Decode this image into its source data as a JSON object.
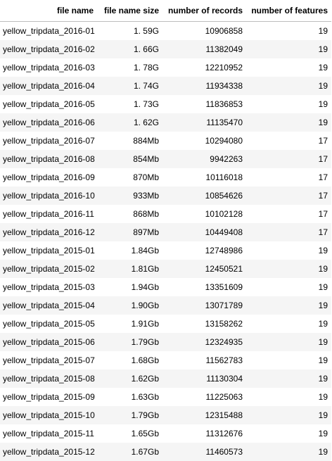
{
  "table": {
    "columns": [
      "file name",
      "file name size",
      "number of records",
      "number of features"
    ],
    "rows": [
      [
        "yellow_tripdata_2016-01",
        "1. 59G",
        "10906858",
        "19"
      ],
      [
        "yellow_tripdata_2016-02",
        "1. 66G",
        "11382049",
        "19"
      ],
      [
        "yellow_tripdata_2016-03",
        "1. 78G",
        "12210952",
        "19"
      ],
      [
        "yellow_tripdata_2016-04",
        "1. 74G",
        "11934338",
        "19"
      ],
      [
        "yellow_tripdata_2016-05",
        "1. 73G",
        "11836853",
        "19"
      ],
      [
        "yellow_tripdata_2016-06",
        "1. 62G",
        "11135470",
        "19"
      ],
      [
        "yellow_tripdata_2016-07",
        "884Mb",
        "10294080",
        "17"
      ],
      [
        "yellow_tripdata_2016-08",
        "854Mb",
        "9942263",
        "17"
      ],
      [
        "yellow_tripdata_2016-09",
        "870Mb",
        "10116018",
        "17"
      ],
      [
        "yellow_tripdata_2016-10",
        "933Mb",
        "10854626",
        "17"
      ],
      [
        "yellow_tripdata_2016-11",
        "868Mb",
        "10102128",
        "17"
      ],
      [
        "yellow_tripdata_2016-12",
        "897Mb",
        "10449408",
        "17"
      ],
      [
        "yellow_tripdata_2015-01",
        "1.84Gb",
        "12748986",
        "19"
      ],
      [
        "yellow_tripdata_2015-02",
        "1.81Gb",
        "12450521",
        "19"
      ],
      [
        "yellow_tripdata_2015-03",
        "1.94Gb",
        "13351609",
        "19"
      ],
      [
        "yellow_tripdata_2015-04",
        "1.90Gb",
        "13071789",
        "19"
      ],
      [
        "yellow_tripdata_2015-05",
        "1.91Gb",
        "13158262",
        "19"
      ],
      [
        "yellow_tripdata_2015-06",
        "1.79Gb",
        "12324935",
        "19"
      ],
      [
        "yellow_tripdata_2015-07",
        "1.68Gb",
        "11562783",
        "19"
      ],
      [
        "yellow_tripdata_2015-08",
        "1.62Gb",
        "11130304",
        "19"
      ],
      [
        "yellow_tripdata_2015-09",
        "1.63Gb",
        "11225063",
        "19"
      ],
      [
        "yellow_tripdata_2015-10",
        "1.79Gb",
        "12315488",
        "19"
      ],
      [
        "yellow_tripdata_2015-11",
        "1.65Gb",
        "11312676",
        "19"
      ],
      [
        "yellow_tripdata_2015-12",
        "1.67Gb",
        "11460573",
        "19"
      ]
    ]
  }
}
